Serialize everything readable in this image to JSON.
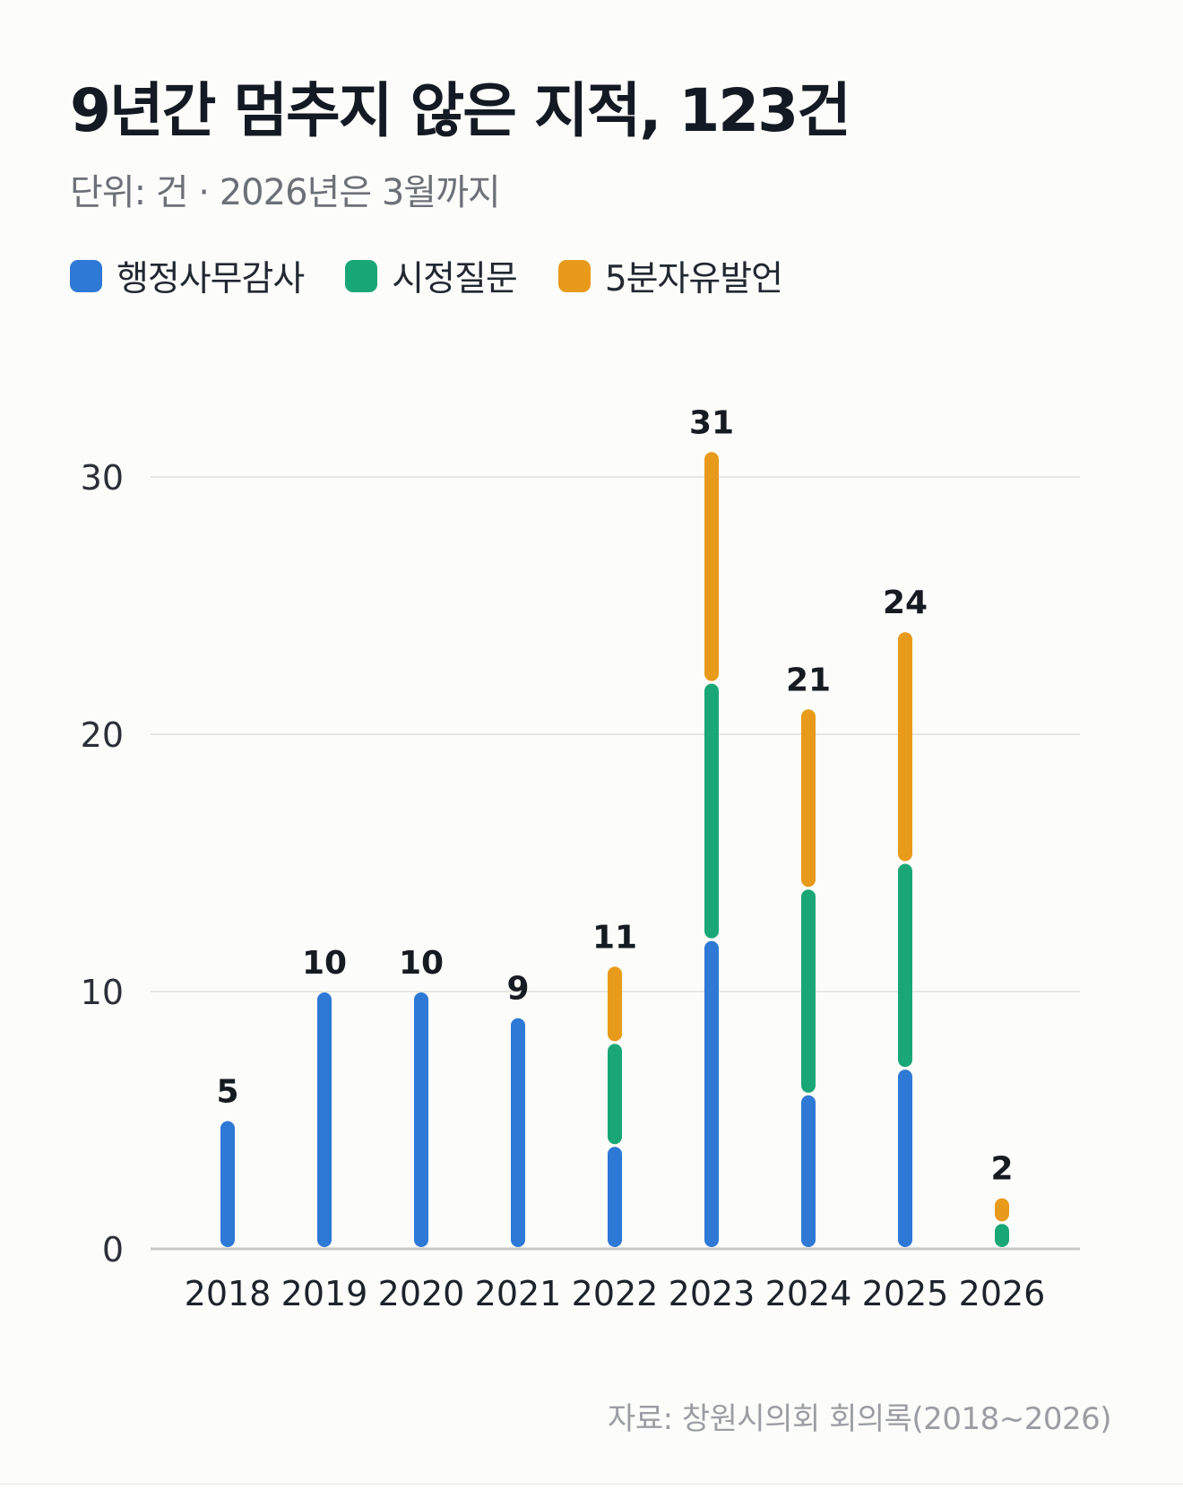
{
  "header": {
    "title": "9년간 멈추지 않은 지적, 123건",
    "subtitle": "단위: 건 · 2026년은 3월까지"
  },
  "colors": {
    "admin_audit": "#2e78d6",
    "city_question": "#1aa777",
    "five_minute_speech": "#e89a1a",
    "grid": "#e6e6e3",
    "axis": "#c9c9c6"
  },
  "footer": {
    "source": "자료: 창원시의회 회의록(2018~2026)"
  },
  "chart_data": {
    "type": "bar",
    "stacked": true,
    "categories": [
      "2018",
      "2019",
      "2020",
      "2021",
      "2022",
      "2023",
      "2024",
      "2025",
      "2026"
    ],
    "series": [
      {
        "name": "행정사무감사",
        "color": "#2e78d6",
        "values": [
          5,
          10,
          10,
          9,
          4,
          12,
          6,
          7,
          0
        ]
      },
      {
        "name": "시정질문",
        "color": "#1aa777",
        "values": [
          0,
          0,
          0,
          0,
          4,
          10,
          8,
          8,
          1
        ]
      },
      {
        "name": "5분자유발언",
        "color": "#e89a1a",
        "values": [
          0,
          0,
          0,
          0,
          3,
          9,
          7,
          9,
          1
        ]
      }
    ],
    "totals": [
      5,
      10,
      10,
      9,
      11,
      31,
      21,
      24,
      2
    ],
    "ylim": [
      0,
      30
    ],
    "yticks": [
      0,
      10,
      20,
      30
    ],
    "grid": true,
    "legend_position": "top-left",
    "xlabel": "",
    "ylabel": ""
  }
}
